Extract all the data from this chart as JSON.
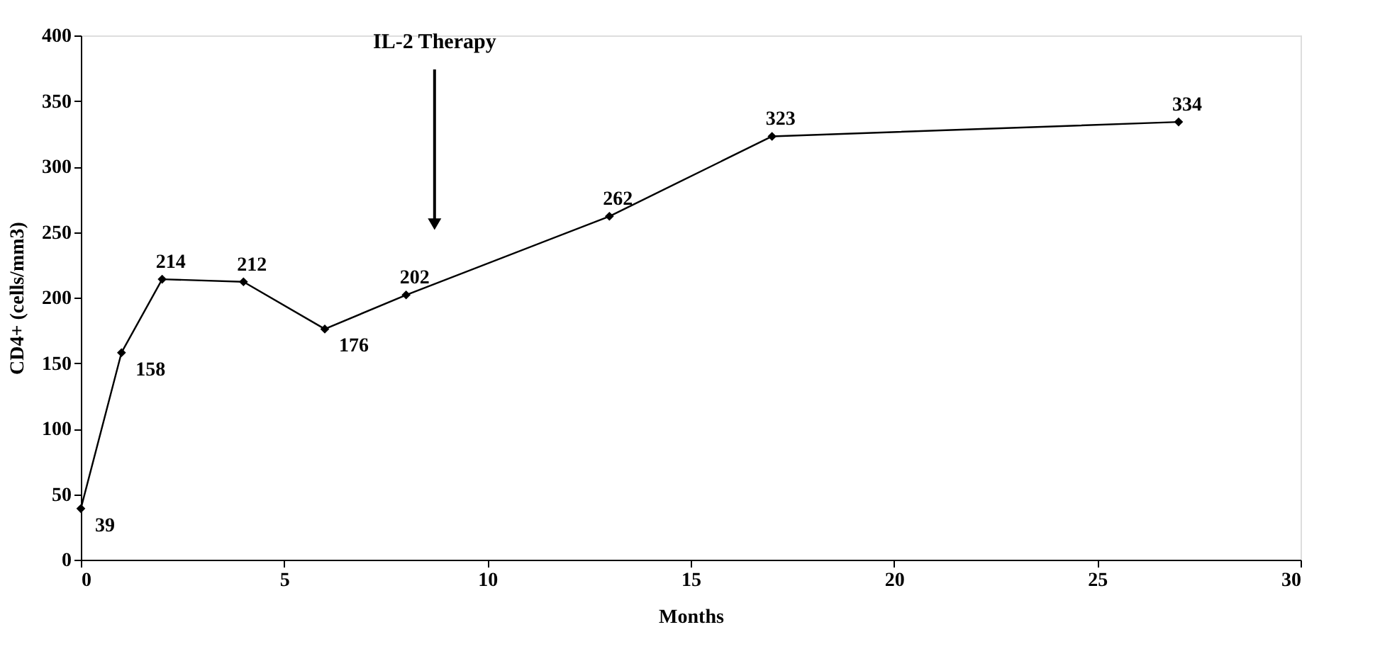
{
  "chart_data": {
    "type": "line",
    "xlabel": "Months",
    "ylabel": "CD4+ (cells/mm3)",
    "x": [
      0,
      1,
      2,
      4,
      6,
      8,
      13,
      17,
      27
    ],
    "series": [
      {
        "color": "#000000",
        "values": [
          39,
          158,
          214,
          212,
          176,
          202,
          262,
          323,
          334
        ]
      }
    ],
    "xlim": [
      0,
      30
    ],
    "xticks": [
      0,
      5,
      10,
      15,
      20,
      25,
      30
    ],
    "ylim": [
      0,
      400
    ],
    "yticks": [
      0,
      50,
      100,
      150,
      200,
      250,
      300,
      350,
      400
    ],
    "marker": "diamond",
    "line_style": "solid",
    "grid": false,
    "data_labels": true,
    "annotations": [
      "IL-2 Therapy"
    ]
  }
}
